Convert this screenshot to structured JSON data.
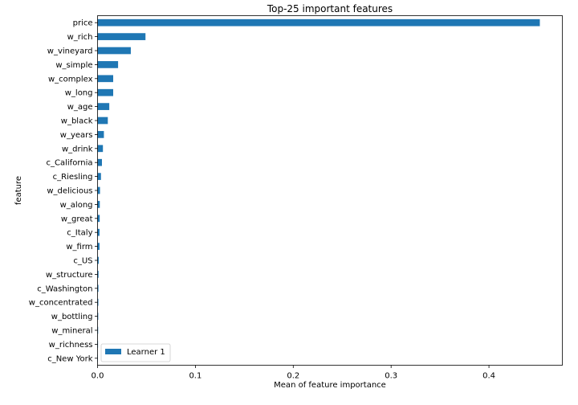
{
  "chart_data": {
    "type": "bar",
    "orientation": "horizontal",
    "title": "Top-25 important features",
    "xlabel": "Mean of feature importance",
    "ylabel": "feature",
    "xlim": [
      0,
      0.475
    ],
    "xticks": [
      0,
      0.1,
      0.2,
      0.3,
      0.4
    ],
    "xtick_labels": [
      "0.0",
      "0.1",
      "0.2",
      "0.3",
      "0.4"
    ],
    "grid": false,
    "legend_position": "lower-left",
    "series": [
      {
        "name": "Learner 1",
        "color": "#1f77b4",
        "values": [
          0.452,
          0.049,
          0.034,
          0.021,
          0.016,
          0.016,
          0.012,
          0.0105,
          0.0065,
          0.0055,
          0.0045,
          0.0035,
          0.0025,
          0.0023,
          0.0022,
          0.002,
          0.002,
          0.0012,
          0.001,
          0.0009,
          0.0008,
          0.0007,
          0.0006,
          0.0005,
          0.0004
        ]
      }
    ],
    "categories": [
      "price",
      "w_rich",
      "w_vineyard",
      "w_simple",
      "w_complex",
      "w_long",
      "w_age",
      "w_black",
      "w_years",
      "w_drink",
      "c_California",
      "c_Riesling",
      "w_delicious",
      "w_along",
      "w_great",
      "c_Italy",
      "w_firm",
      "c_US",
      "w_structure",
      "c_Washington",
      "w_concentrated",
      "w_bottling",
      "w_mineral",
      "w_richness",
      "c_New York"
    ]
  }
}
